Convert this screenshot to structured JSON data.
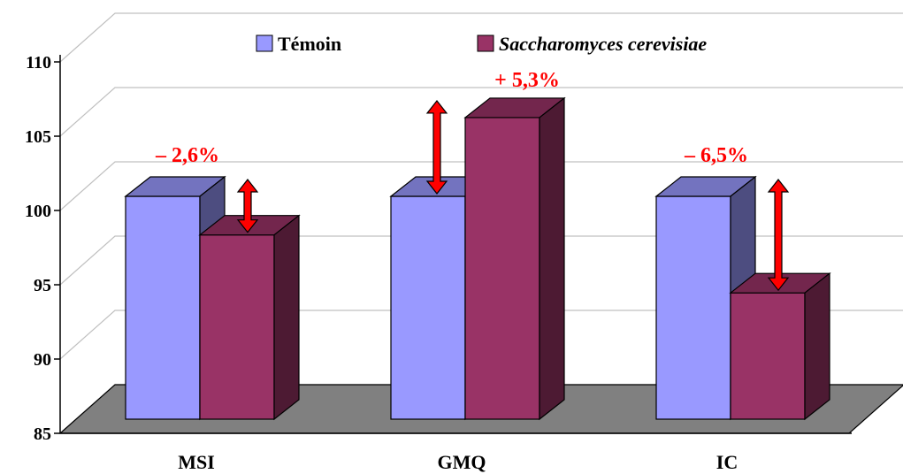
{
  "chart_data": {
    "type": "bar",
    "categories": [
      "MSI",
      "GMQ",
      "IC"
    ],
    "series": [
      {
        "name": "Témoin",
        "values": [
          100,
          100,
          100
        ],
        "color": "#9999ff",
        "italic": false
      },
      {
        "name": "Saccharomyces cerevisiae",
        "values": [
          97.4,
          105.3,
          93.5
        ],
        "color": "#993366",
        "italic": true
      }
    ],
    "annotations": [
      "– 2,6%",
      "+ 5,3%",
      "– 6,5%"
    ],
    "ylim": [
      85,
      110
    ],
    "yticks": [
      85,
      90,
      95,
      100,
      105,
      110
    ],
    "ytick_labels": [
      "85",
      "90",
      "95",
      "100",
      "105",
      "110"
    ],
    "grid": true,
    "style": "3d-column",
    "legend_position": "top",
    "annotation_color": "#ff0000",
    "floor_color": "#808080"
  }
}
